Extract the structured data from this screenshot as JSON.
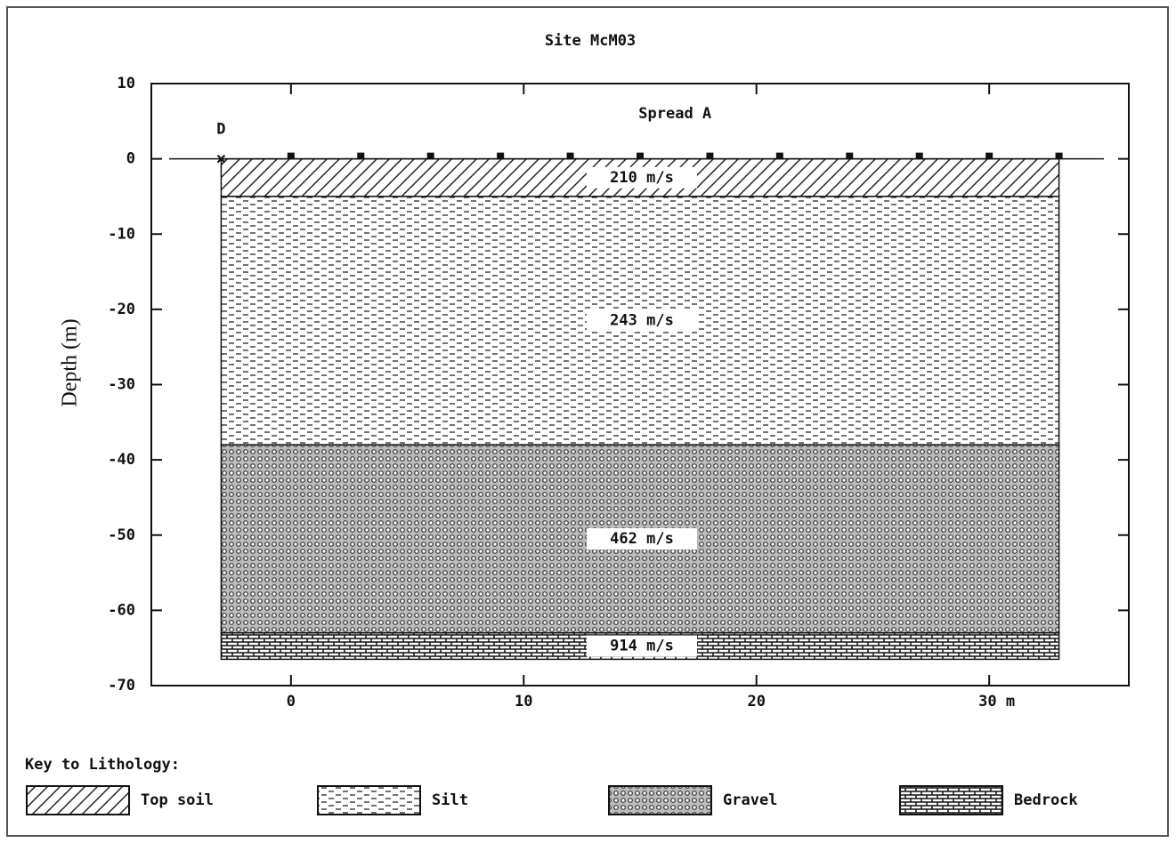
{
  "chart_data": {
    "type": "cross-section",
    "title": "Site McM03",
    "subtitle": "Spread A",
    "ylabel": "Depth (m)",
    "xlim": [
      -6,
      36
    ],
    "xticks": [
      0,
      10,
      20,
      {
        "value": 30,
        "label": "30 m"
      }
    ],
    "ylim": [
      -70,
      10
    ],
    "yticks": [
      -70,
      -60,
      -50,
      -40,
      -30,
      -20,
      -10,
      0,
      10
    ],
    "source": {
      "label": "D",
      "x": -3
    },
    "geophones": [
      0,
      3,
      6,
      9,
      12,
      15,
      18,
      21,
      24,
      27,
      30,
      33
    ],
    "layer_x": [
      -3,
      33
    ],
    "legend_title": "Key to Lithology:",
    "layers": [
      {
        "name": "Top soil",
        "pattern": "topsoil",
        "top": 0,
        "bottom": -5,
        "label": "210 m/s"
      },
      {
        "name": "Silt",
        "pattern": "silt",
        "top": -5,
        "bottom": -38,
        "label": "243 m/s"
      },
      {
        "name": "Gravel",
        "pattern": "gravel",
        "top": -38,
        "bottom": -63,
        "label": "462 m/s"
      },
      {
        "name": "Bedrock",
        "pattern": "bedrock",
        "top": -63,
        "bottom": -66.5,
        "label": "914 m/s"
      }
    ]
  }
}
